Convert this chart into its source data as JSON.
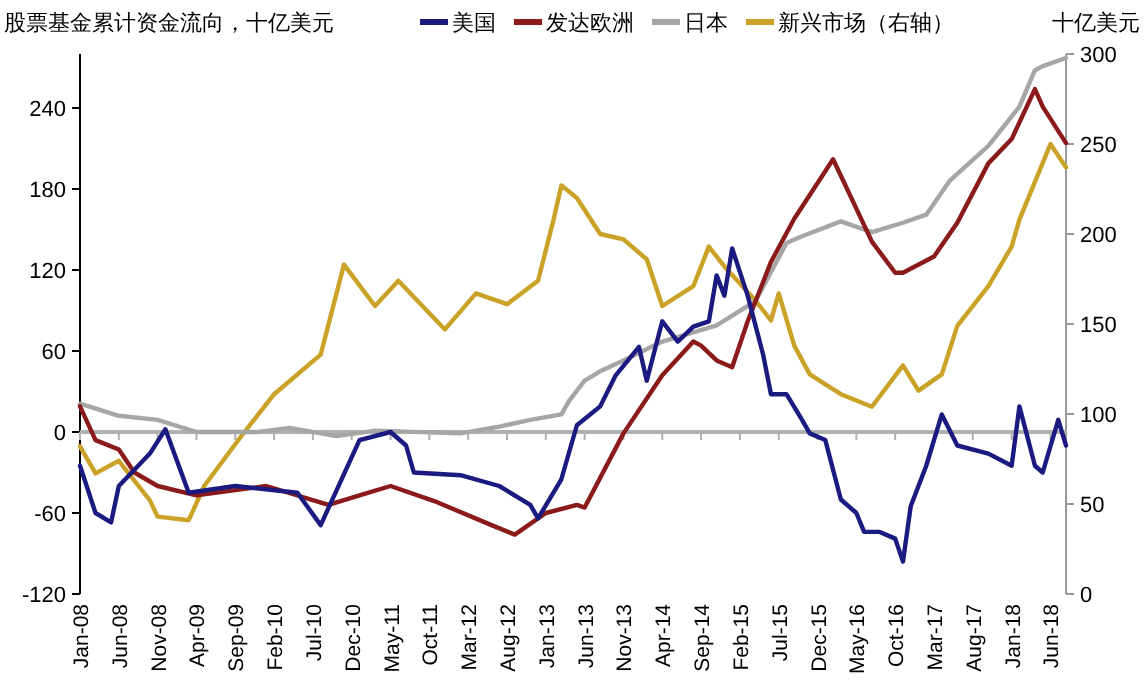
{
  "chart_data": {
    "type": "line",
    "title": "股票基金累计资金流向，十亿美元",
    "y2label": "十亿美元",
    "legend": "top",
    "ref_lines": [
      {
        "axis": "y",
        "value": 0,
        "color": "#b0b0b0"
      }
    ],
    "marker": "none",
    "line_style": "solid",
    "xlim": [
      "2008-01",
      "2018-08"
    ],
    "xticks": [
      {
        "value": "2008-01",
        "label": "Jan-08"
      },
      {
        "value": "2008-06",
        "label": "Jun-08"
      },
      {
        "value": "2008-11",
        "label": "Nov-08"
      },
      {
        "value": "2009-04",
        "label": "Apr-09"
      },
      {
        "value": "2009-09",
        "label": "Sep-09"
      },
      {
        "value": "2010-02",
        "label": "Feb-10"
      },
      {
        "value": "2010-07",
        "label": "Jul-10"
      },
      {
        "value": "2010-12",
        "label": "Dec-10"
      },
      {
        "value": "2011-05",
        "label": "May-11"
      },
      {
        "value": "2011-10",
        "label": "Oct-11"
      },
      {
        "value": "2012-03",
        "label": "Mar-12"
      },
      {
        "value": "2012-08",
        "label": "Aug-12"
      },
      {
        "value": "2013-01",
        "label": "Jan-13"
      },
      {
        "value": "2013-06",
        "label": "Jun-13"
      },
      {
        "value": "2013-11",
        "label": "Nov-13"
      },
      {
        "value": "2014-04",
        "label": "Apr-14"
      },
      {
        "value": "2014-09",
        "label": "Sep-14"
      },
      {
        "value": "2015-02",
        "label": "Feb-15"
      },
      {
        "value": "2015-07",
        "label": "Jul-15"
      },
      {
        "value": "2015-12",
        "label": "Dec-15"
      },
      {
        "value": "2016-05",
        "label": "May-16"
      },
      {
        "value": "2016-10",
        "label": "Oct-16"
      },
      {
        "value": "2017-03",
        "label": "Mar-17"
      },
      {
        "value": "2017-08",
        "label": "Aug-17"
      },
      {
        "value": "2018-01",
        "label": "Jan-18"
      },
      {
        "value": "2018-06",
        "label": "Jun-18"
      }
    ],
    "ylim": [
      -120,
      280
    ],
    "yticks": [
      -120,
      -60,
      0,
      60,
      120,
      180,
      240
    ],
    "y2lim": [
      0,
      300
    ],
    "y2ticks": [
      0,
      50,
      100,
      150,
      200,
      250,
      300
    ],
    "series": [
      {
        "name": "美国",
        "color": "#1a1a80",
        "x": [
          "2008-01",
          "2008-03",
          "2008-05",
          "2008-06",
          "2008-10",
          "2008-12",
          "2009-03",
          "2009-09",
          "2010-05",
          "2010-08",
          "2011-01",
          "2011-05",
          "2011-07",
          "2011-08",
          "2012-02",
          "2012-07",
          "2012-11",
          "2012-12",
          "2013-03",
          "2013-05",
          "2013-08",
          "2013-10",
          "2014-01",
          "2014-02",
          "2014-04",
          "2014-06",
          "2014-08",
          "2014-10",
          "2014-11",
          "2014-12",
          "2015-01",
          "2015-03",
          "2015-05",
          "2015-06",
          "2015-08",
          "2015-10",
          "2015-11",
          "2016-01",
          "2016-03",
          "2016-05",
          "2016-06",
          "2016-08",
          "2016-10",
          "2016-11",
          "2016-12",
          "2017-02",
          "2017-04",
          "2017-06",
          "2017-10",
          "2018-01",
          "2018-02",
          "2018-04",
          "2018-05",
          "2018-07",
          "2018-08"
        ],
        "values": [
          -25,
          -60,
          -67,
          -40,
          -16,
          2,
          -45,
          -40,
          -45,
          -69,
          -6,
          0,
          -10,
          -30,
          -32,
          -40,
          -54,
          -64,
          -35,
          5,
          19,
          42,
          63,
          38,
          82,
          67,
          78,
          82,
          116,
          101,
          136,
          101,
          57,
          28,
          28,
          9,
          -1,
          -6,
          -50,
          -60,
          -74,
          -74,
          -79,
          -96,
          -55,
          -25,
          13,
          -10,
          -16,
          -25,
          19,
          -25,
          -30,
          9,
          -10
        ]
      },
      {
        "name": "发达欧洲",
        "color": "#8b1a1a",
        "x": [
          "2008-01",
          "2008-03",
          "2008-06",
          "2008-08",
          "2008-11",
          "2009-04",
          "2010-01",
          "2010-09",
          "2011-01",
          "2011-05",
          "2011-11",
          "2012-06",
          "2012-09",
          "2013-01",
          "2013-05",
          "2013-06",
          "2013-11",
          "2014-04",
          "2014-08",
          "2014-09",
          "2014-11",
          "2015-01",
          "2015-03",
          "2015-06",
          "2015-09",
          "2016-02",
          "2016-07",
          "2016-10",
          "2016-11",
          "2017-03",
          "2017-06",
          "2017-10",
          "2018-01",
          "2018-04",
          "2018-05",
          "2018-08"
        ],
        "values": [
          19,
          -6,
          -13,
          -30,
          -40,
          -47,
          -40,
          -54,
          -47,
          -40,
          -52,
          -69,
          -76,
          -60,
          -54,
          -56,
          -1,
          42,
          67,
          64,
          53,
          48,
          82,
          126,
          158,
          202,
          141,
          118,
          118,
          130,
          155,
          199,
          217,
          254,
          241,
          214
        ]
      },
      {
        "name": "日本",
        "color": "#a6a6a6",
        "x": [
          "2008-01",
          "2008-06",
          "2008-11",
          "2009-04",
          "2009-12",
          "2010-04",
          "2010-10",
          "2011-03",
          "2012-02",
          "2012-07",
          "2012-11",
          "2013-03",
          "2013-04",
          "2013-06",
          "2013-08",
          "2013-11",
          "2014-04",
          "2014-11",
          "2015-04",
          "2015-08",
          "2015-10",
          "2016-03",
          "2016-07",
          "2016-11",
          "2017-02",
          "2017-05",
          "2017-10",
          "2018-02",
          "2018-04",
          "2018-05",
          "2018-08"
        ],
        "values": [
          21,
          12,
          9,
          0,
          0,
          3,
          -3,
          1,
          -1,
          4,
          9,
          13,
          23,
          38,
          45,
          53,
          67,
          79,
          97,
          140,
          145,
          156,
          148,
          155,
          161,
          186,
          212,
          241,
          268,
          271,
          277
        ]
      },
      {
        "name": "新兴市场（右轴）",
        "color": "#c9a227",
        "axis": "y2",
        "x": [
          "2008-01",
          "2008-03",
          "2008-06",
          "2008-10",
          "2008-11",
          "2009-03",
          "2009-05",
          "2009-10",
          "2010-02",
          "2010-08",
          "2010-11",
          "2011-03",
          "2011-06",
          "2011-12",
          "2012-04",
          "2012-08",
          "2012-12",
          "2013-02",
          "2013-03",
          "2013-05",
          "2013-08",
          "2013-11",
          "2014-02",
          "2014-04",
          "2014-08",
          "2014-10",
          "2014-12",
          "2015-04",
          "2015-06",
          "2015-07",
          "2015-09",
          "2015-11",
          "2016-03",
          "2016-07",
          "2016-11",
          "2017-01",
          "2017-04",
          "2017-06",
          "2017-10",
          "2018-01",
          "2018-02",
          "2018-04",
          "2018-06",
          "2018-08"
        ],
        "values": [
          82,
          67,
          74,
          52,
          43,
          41,
          60,
          89,
          111,
          133,
          183,
          160,
          174,
          147,
          167,
          161,
          174,
          208,
          227,
          220,
          200,
          197,
          186,
          160,
          171,
          193,
          182,
          163,
          152,
          167,
          138,
          122,
          111,
          104,
          127,
          113,
          122,
          149,
          171,
          193,
          208,
          229,
          250,
          237
        ]
      }
    ]
  }
}
